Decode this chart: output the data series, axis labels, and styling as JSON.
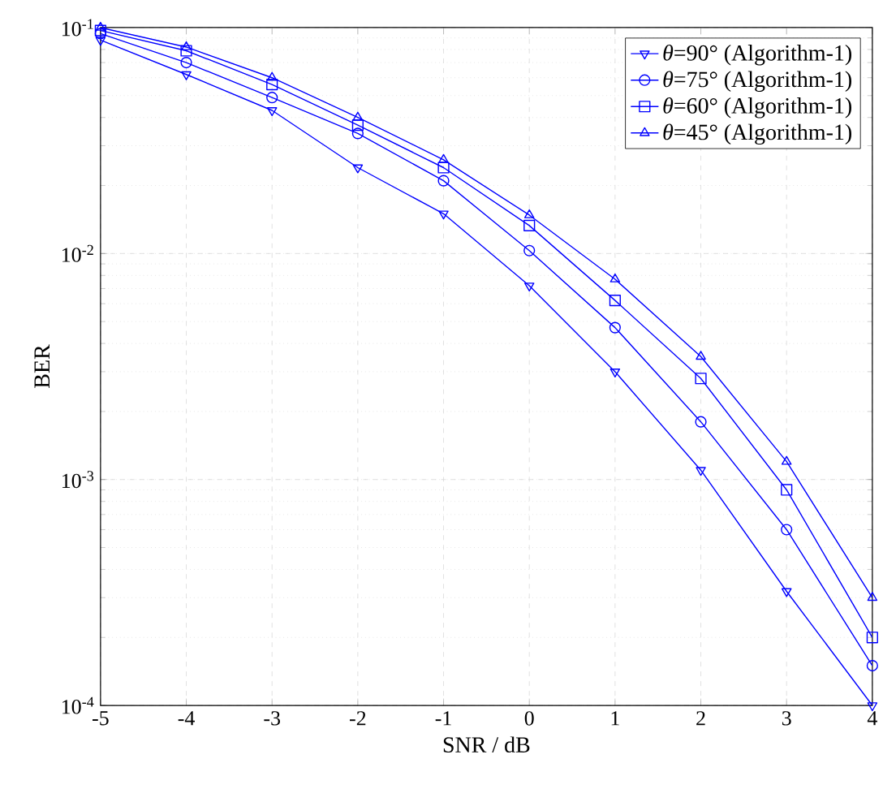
{
  "chart_data": {
    "type": "line",
    "xlabel": "SNR / dB",
    "ylabel": "BER",
    "log": "y",
    "grid": true,
    "legend": "top right",
    "line_style": "solid",
    "x": [
      -5,
      -4,
      -3,
      -2,
      -1,
      0,
      1,
      2,
      3,
      4
    ],
    "xlim": [
      -5,
      4
    ],
    "xticks": [
      -5,
      -4,
      -3,
      -2,
      -1,
      0,
      1,
      2,
      3,
      4
    ],
    "ylim": [
      0.0001,
      0.1
    ],
    "yticks": [
      {
        "value": 0.0001,
        "label": "10$^{-4}$"
      },
      {
        "value": 0.001,
        "label": "10$^{-3}$"
      },
      {
        "value": 0.01,
        "label": "10$^{-2}$"
      },
      {
        "value": 0.1,
        "label": "10$^{-1}$"
      }
    ],
    "series": [
      {
        "name": "*θ*=90° (Algorithm-1)",
        "color": "#0000ff",
        "marker": "triangle-down",
        "values": [
          0.088,
          0.062,
          0.043,
          0.024,
          0.015,
          0.0072,
          0.003,
          0.0011,
          0.00032,
          0.0001
        ]
      },
      {
        "name": "*θ*=75° (Algorithm-1)",
        "color": "#0000ff",
        "marker": "circle",
        "values": [
          0.094,
          0.07,
          0.049,
          0.034,
          0.021,
          0.0103,
          0.0047,
          0.0018,
          0.0006,
          0.00015
        ]
      },
      {
        "name": "*θ*=60° (Algorithm-1)",
        "color": "#0000ff",
        "marker": "square",
        "values": [
          0.097,
          0.079,
          0.056,
          0.037,
          0.024,
          0.0133,
          0.0062,
          0.0028,
          0.0009,
          0.0002
        ]
      },
      {
        "name": "*θ*=45° (Algorithm-1)",
        "color": "#0000ff",
        "marker": "triangle",
        "values": [
          0.1,
          0.082,
          0.06,
          0.04,
          0.026,
          0.0148,
          0.0077,
          0.0035,
          0.0012,
          0.0003
        ]
      }
    ]
  }
}
